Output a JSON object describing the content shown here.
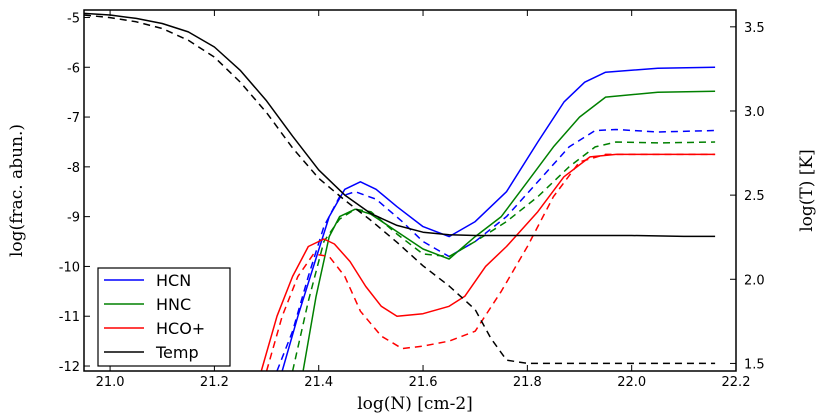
{
  "chart_data": {
    "type": "line",
    "xlabel": "log(N) [cm-2]",
    "ylabel": "log(frac. abun.)",
    "y2label": "log(T) [K]",
    "xlim": [
      20.95,
      22.2
    ],
    "ylim": [
      -12.1,
      -4.85
    ],
    "y2lim": [
      1.455,
      3.6
    ],
    "x_ticks": [
      21.0,
      21.2,
      21.4,
      21.6,
      21.8,
      22.0,
      22.2
    ],
    "x_tick_labels": [
      "21.0",
      "21.2",
      "21.4",
      "21.6",
      "21.8",
      "22.0",
      "22.2"
    ],
    "y_ticks": [
      -5,
      -6,
      -7,
      -8,
      -9,
      -10,
      -11,
      -12
    ],
    "y_tick_labels": [
      "-5",
      "-6",
      "-7",
      "-8",
      "-9",
      "-10",
      "-11",
      "-12"
    ],
    "y2_ticks": [
      1.5,
      2.0,
      2.5,
      3.0,
      3.5
    ],
    "y2_tick_labels": [
      "1.5",
      "2.0",
      "2.5",
      "3.0",
      "3.5"
    ],
    "legend_position": "bottom-left",
    "legend": [
      {
        "name": "HCN",
        "color": "#0000ff"
      },
      {
        "name": "HNC",
        "color": "#008000"
      },
      {
        "name": "HCO+",
        "color": "#ff0000"
      },
      {
        "name": "Temp",
        "color": "#000000"
      }
    ],
    "series": [
      {
        "name": "HCN",
        "color": "#0000ff",
        "style": "solid",
        "axis": "left",
        "x": [
          21.33,
          21.36,
          21.39,
          21.42,
          21.45,
          21.48,
          21.51,
          21.55,
          21.6,
          21.65,
          21.7,
          21.76,
          21.82,
          21.87,
          21.91,
          21.95,
          22.05,
          22.16
        ],
        "y": [
          -12.1,
          -11.0,
          -10.0,
          -9.0,
          -8.45,
          -8.3,
          -8.45,
          -8.8,
          -9.2,
          -9.4,
          -9.1,
          -8.5,
          -7.5,
          -6.7,
          -6.3,
          -6.1,
          -6.02,
          -6.0
        ]
      },
      {
        "name": "HCN",
        "color": "#0000ff",
        "style": "dashed",
        "axis": "left",
        "x": [
          21.32,
          21.35,
          21.38,
          21.41,
          21.44,
          21.47,
          21.51,
          21.56,
          21.6,
          21.65,
          21.7,
          21.76,
          21.82,
          21.88,
          21.93,
          21.97,
          22.05,
          22.16
        ],
        "y": [
          -12.1,
          -11.3,
          -10.2,
          -9.2,
          -8.6,
          -8.5,
          -8.65,
          -9.1,
          -9.5,
          -9.8,
          -9.5,
          -9.0,
          -8.3,
          -7.6,
          -7.27,
          -7.25,
          -7.3,
          -7.27
        ]
      },
      {
        "name": "HNC",
        "color": "#008000",
        "style": "solid",
        "axis": "left",
        "x": [
          21.37,
          21.395,
          21.42,
          21.44,
          21.47,
          21.5,
          21.55,
          21.6,
          21.65,
          21.7,
          21.75,
          21.8,
          21.85,
          21.9,
          21.95,
          22.05,
          22.16
        ],
        "y": [
          -12.1,
          -10.6,
          -9.4,
          -9.0,
          -8.85,
          -8.95,
          -9.3,
          -9.65,
          -9.85,
          -9.4,
          -9.0,
          -8.3,
          -7.6,
          -7.0,
          -6.6,
          -6.5,
          -6.48
        ]
      },
      {
        "name": "HNC",
        "color": "#008000",
        "style": "dashed",
        "axis": "left",
        "x": [
          21.35,
          21.38,
          21.41,
          21.44,
          21.47,
          21.5,
          21.55,
          21.6,
          21.65,
          21.7,
          21.76,
          21.82,
          21.88,
          21.93,
          21.97,
          22.05,
          22.16
        ],
        "y": [
          -12.1,
          -10.7,
          -9.5,
          -9.05,
          -8.85,
          -8.9,
          -9.35,
          -9.75,
          -9.8,
          -9.5,
          -9.1,
          -8.6,
          -8.0,
          -7.6,
          -7.5,
          -7.52,
          -7.5
        ]
      },
      {
        "name": "HCO+",
        "color": "#ff0000",
        "style": "solid",
        "axis": "left",
        "x": [
          21.29,
          21.32,
          21.35,
          21.38,
          21.41,
          21.43,
          21.46,
          21.49,
          21.52,
          21.55,
          21.6,
          21.65,
          21.68,
          21.72,
          21.76,
          21.82,
          21.87,
          21.92,
          21.97,
          22.05,
          22.16
        ],
        "y": [
          -12.1,
          -11.0,
          -10.2,
          -9.6,
          -9.45,
          -9.55,
          -9.9,
          -10.4,
          -10.8,
          -11.0,
          -10.95,
          -10.8,
          -10.6,
          -10.0,
          -9.6,
          -8.9,
          -8.2,
          -7.8,
          -7.75,
          -7.75,
          -7.75
        ]
      },
      {
        "name": "HCO+",
        "color": "#ff0000",
        "style": "dashed",
        "axis": "left",
        "x": [
          21.3,
          21.33,
          21.36,
          21.39,
          21.42,
          21.45,
          21.48,
          21.52,
          21.56,
          21.6,
          21.65,
          21.7,
          21.75,
          21.8,
          21.85,
          21.9,
          21.95,
          22.05,
          22.16
        ],
        "y": [
          -12.1,
          -11.0,
          -10.2,
          -9.75,
          -9.8,
          -10.2,
          -10.9,
          -11.4,
          -11.65,
          -11.6,
          -11.5,
          -11.3,
          -10.5,
          -9.6,
          -8.6,
          -7.9,
          -7.75,
          -7.75,
          -7.75
        ]
      },
      {
        "name": "Temp",
        "color": "#000000",
        "style": "solid",
        "axis": "right",
        "x": [
          20.95,
          21.0,
          21.05,
          21.1,
          21.15,
          21.2,
          21.25,
          21.3,
          21.35,
          21.4,
          21.45,
          21.5,
          21.55,
          21.6,
          21.65,
          21.7,
          21.8,
          21.9,
          22.0,
          22.1,
          22.16
        ],
        "y": [
          3.58,
          3.57,
          3.55,
          3.52,
          3.47,
          3.38,
          3.24,
          3.06,
          2.85,
          2.65,
          2.5,
          2.39,
          2.32,
          2.28,
          2.265,
          2.26,
          2.26,
          2.26,
          2.26,
          2.255,
          2.255
        ]
      },
      {
        "name": "Temp",
        "color": "#000000",
        "style": "dashed",
        "axis": "right",
        "x": [
          20.95,
          21.0,
          21.05,
          21.1,
          21.15,
          21.2,
          21.25,
          21.3,
          21.35,
          21.4,
          21.45,
          21.5,
          21.55,
          21.6,
          21.65,
          21.7,
          21.73,
          21.76,
          21.8,
          21.9,
          22.0,
          22.16
        ],
        "y": [
          3.57,
          3.555,
          3.53,
          3.49,
          3.42,
          3.32,
          3.17,
          2.99,
          2.78,
          2.6,
          2.47,
          2.35,
          2.22,
          2.08,
          1.96,
          1.82,
          1.65,
          1.52,
          1.5,
          1.5,
          1.5,
          1.5
        ]
      }
    ]
  }
}
